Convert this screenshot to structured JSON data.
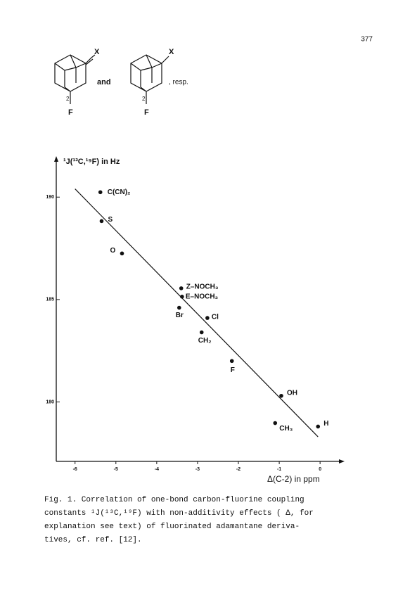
{
  "page_number": "377",
  "structures": {
    "left": {
      "substituent": "X",
      "position": "2",
      "fluorine": "F"
    },
    "connector": "and",
    "right": {
      "substituent": "X",
      "position": "2",
      "fluorine": "F"
    },
    "suffix": ", resp."
  },
  "chart_data": {
    "type": "scatter",
    "y_label": "¹J(¹³C,¹⁹F) in Hz",
    "x_label": "Δ(C-2) in ppm",
    "point_labels": [
      "C(CN)₂",
      "S",
      "O",
      "Z–NOCH₃",
      "E–NOCH₃",
      "Br",
      "Cl",
      "CH₂",
      "F",
      "OH",
      "CH₃",
      "H"
    ],
    "x": [
      -5.38,
      -5.35,
      -4.85,
      -3.4,
      -3.38,
      -3.45,
      -2.76,
      -2.9,
      -2.16,
      -0.95,
      -1.1,
      -0.05
    ],
    "y": [
      190.24,
      188.83,
      187.25,
      185.55,
      185.14,
      184.6,
      184.1,
      183.4,
      182.0,
      180.3,
      178.97,
      178.8
    ],
    "color": "#111111",
    "fit_line": {
      "x": [
        -6,
        -0.05
      ],
      "y": [
        190.4,
        178.3
      ]
    },
    "xlim": [
      -6.46,
      0.6
    ],
    "ylim": [
      177.1,
      192
    ],
    "xticks": [
      -6,
      -5,
      -4,
      -3,
      -2,
      -1,
      0
    ],
    "yticks": [
      180,
      185,
      190
    ]
  },
  "caption": {
    "lines": [
      "Fig. 1. Correlation of one-bond carbon-fluorine coupling",
      "constants ¹J(¹³C,¹⁹F) with non-additivity effects ( Δ, for",
      "explanation see text) of fluorinated adamantane deriva-",
      "tives, cf. ref. [12]."
    ]
  }
}
